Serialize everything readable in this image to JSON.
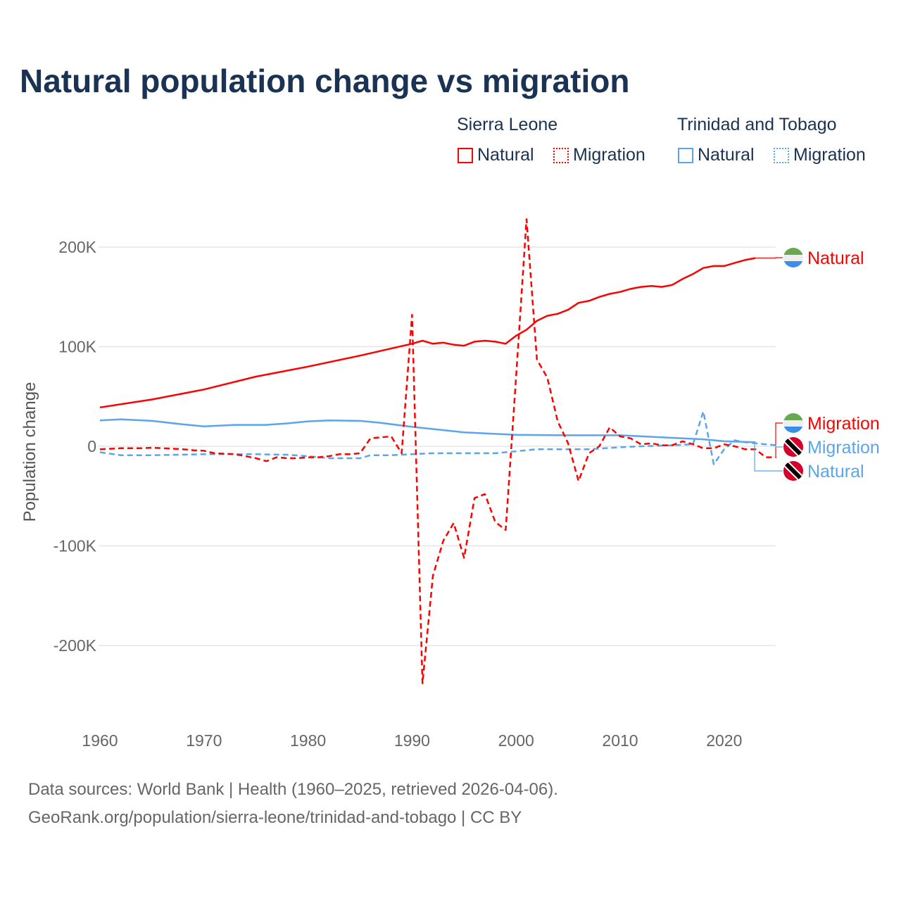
{
  "chart_data": {
    "type": "line",
    "title": "Natural population change vs migration",
    "ylabel": "Population change",
    "xlabel": "",
    "xlim": [
      1960,
      2025
    ],
    "ylim": [
      -250000,
      230000
    ],
    "x_ticks": [
      1960,
      1970,
      1980,
      1990,
      2000,
      2010,
      2020
    ],
    "x_tick_labels": [
      "1960",
      "1970",
      "1980",
      "1990",
      "2000",
      "2010",
      "2020"
    ],
    "y_ticks": [
      200000,
      100000,
      0,
      -100000,
      -200000
    ],
    "y_tick_labels": [
      "200K",
      "100K",
      "0",
      "-100K",
      "-200K"
    ],
    "grid": true,
    "legend": {
      "placement": "top-right",
      "groups": [
        {
          "title": "Sierra Leone",
          "items": [
            "Natural",
            "Migration"
          ]
        },
        {
          "title": "Trinidad and Tobago",
          "items": [
            "Natural",
            "Migration"
          ]
        }
      ]
    },
    "series": [
      {
        "name": "Sierra Leone Natural",
        "end_label": "Natural",
        "flag": "sierra-leone",
        "color": "#ff0000",
        "dash": false,
        "x": [
          1960,
          1965,
          1970,
          1975,
          1980,
          1985,
          1990,
          1991,
          1992,
          1993,
          1994,
          1995,
          1996,
          1997,
          1998,
          1999,
          2000,
          2001,
          2002,
          2003,
          2004,
          2005,
          2006,
          2007,
          2008,
          2009,
          2010,
          2011,
          2012,
          2013,
          2014,
          2015,
          2016,
          2017,
          2018,
          2019,
          2020,
          2021,
          2022,
          2023
        ],
        "y": [
          39000,
          47000,
          57000,
          70000,
          80000,
          91000,
          103000,
          106000,
          103000,
          104000,
          102000,
          101000,
          105000,
          106000,
          105000,
          103000,
          111000,
          117000,
          126000,
          131000,
          133000,
          137000,
          144000,
          146000,
          150000,
          153000,
          155000,
          158000,
          160000,
          161000,
          160000,
          162000,
          168000,
          173000,
          179000,
          181000,
          181000,
          184000,
          187000,
          189000
        ]
      },
      {
        "name": "Sierra Leone Migration",
        "end_label": "Migration",
        "flag": "sierra-leone",
        "color": "#ff0000",
        "dash": true,
        "x": [
          1960,
          1961,
          1962,
          1963,
          1964,
          1965,
          1966,
          1967,
          1968,
          1969,
          1970,
          1971,
          1972,
          1973,
          1974,
          1975,
          1976,
          1977,
          1978,
          1979,
          1980,
          1981,
          1982,
          1983,
          1984,
          1985,
          1986,
          1987,
          1988,
          1989,
          1990,
          1991,
          1992,
          1993,
          1994,
          1995,
          1996,
          1997,
          1998,
          1999,
          2000,
          2001,
          2002,
          2003,
          2004,
          2005,
          2006,
          2007,
          2008,
          2009,
          2010,
          2011,
          2012,
          2013,
          2014,
          2015,
          2016,
          2017,
          2018,
          2019,
          2020,
          2021,
          2022,
          2023,
          2024,
          2025
        ],
        "y": [
          -3000,
          -2500,
          -2000,
          -2000,
          -2000,
          -1500,
          -2000,
          -2500,
          -3000,
          -4000,
          -4500,
          -7000,
          -7500,
          -8000,
          -10000,
          -12000,
          -15000,
          -11000,
          -12000,
          -12000,
          -11000,
          -11000,
          -10000,
          -8000,
          -8000,
          -7000,
          8000,
          9000,
          10000,
          -7000,
          132000,
          -238000,
          -130000,
          -95000,
          -77000,
          -112000,
          -52000,
          -48000,
          -76000,
          -84000,
          70000,
          228000,
          87000,
          69000,
          25000,
          3000,
          -35000,
          -7000,
          0,
          19000,
          10000,
          8000,
          2000,
          3000,
          1000,
          1000,
          5000,
          2000,
          -2000,
          -2000,
          2000,
          0,
          -3000,
          -3000,
          -11000,
          -11000
        ]
      },
      {
        "name": "Trinidad and Tobago Natural",
        "end_label": "Natural",
        "flag": "trinidad-and-tobago",
        "color": "#5aa5ec",
        "dash": false,
        "x": [
          1960,
          1962,
          1965,
          1968,
          1970,
          1971,
          1973,
          1976,
          1978,
          1980,
          1982,
          1985,
          1987,
          1990,
          1995,
          2000,
          2005,
          2010,
          2015,
          2018,
          2020,
          2023
        ],
        "y": [
          26000,
          27000,
          25500,
          22000,
          20000,
          20500,
          21500,
          21500,
          23000,
          25000,
          26000,
          25500,
          23500,
          19500,
          14000,
          11500,
          11000,
          11000,
          8500,
          7000,
          5000,
          4000
        ]
      },
      {
        "name": "Trinidad and Tobago Migration",
        "end_label": "Migration",
        "flag": "trinidad-and-tobago",
        "color": "#5aa5ec",
        "dash": true,
        "x": [
          1960,
          1962,
          1965,
          1970,
          1975,
          1978,
          1980,
          1982,
          1985,
          1986,
          1988,
          1990,
          1992,
          1995,
          1998,
          2000,
          2002,
          2005,
          2007,
          2010,
          2012,
          2015,
          2017,
          2018,
          2019,
          2020,
          2021,
          2022,
          2023,
          2024,
          2025
        ],
        "y": [
          -6000,
          -9000,
          -9000,
          -8000,
          -8000,
          -8500,
          -10000,
          -12000,
          -12000,
          -9000,
          -9000,
          -8000,
          -7000,
          -7000,
          -7000,
          -5000,
          -3000,
          -3000,
          -3000,
          -1000,
          0,
          1000,
          2000,
          35000,
          -18000,
          -3000,
          6000,
          4000,
          3000,
          2000,
          1000
        ]
      }
    ]
  },
  "legend_text": {
    "group1": "Sierra Leone",
    "group2": "Trinidad and Tobago",
    "natural": "Natural",
    "migration": "Migration"
  },
  "source": {
    "line1": "Data sources: World Bank | Health (1960–2025, retrieved 2026-04-06).",
    "line2": "GeoRank.org/population/sierra-leone/trinidad-and-tobago | CC BY"
  }
}
